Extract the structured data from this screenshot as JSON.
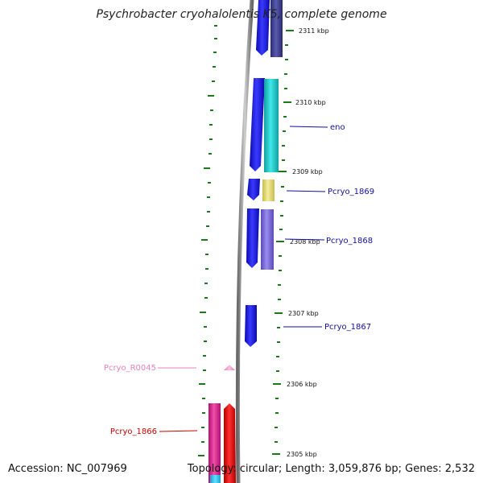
{
  "title": "Psychrobacter cryohalolentis K5, complete genome",
  "footer": {
    "accession": "Accession: NC_007969",
    "summary": "Topology: circular; Length: 3,059,876 bp; Genes: 2,532"
  },
  "ruler": {
    "labels": [
      "2311 kbp",
      "2310 kbp",
      "2309 kbp",
      "2308 kbp",
      "2307 kbp",
      "2306 kbp",
      "2305 kbp"
    ]
  },
  "genes": {
    "eno": "eno",
    "pcryo_1869": "Pcryo_1869",
    "pcryo_1868": "Pcryo_1868",
    "pcryo_1867": "Pcryo_1867",
    "pcryo_r0045": "Pcryo_R0045",
    "pcryo_1866": "Pcryo_1866"
  },
  "colors": {
    "cds": "#1a1ae6",
    "cds_dark": "#3a3a8c",
    "cog_cyan": "#1fc8c8",
    "cog_yellow": "#e8dc7c",
    "cog_lavender": "#7a6ad6",
    "rrna": "#f0a0d0",
    "magenta": "#e0208a",
    "red": "#ee0000",
    "tick_green": "#1a7a1a",
    "label_blue": "#1010a0",
    "label_pink": "#e880c0",
    "label_red": "#cc0000",
    "backbone": "#8c8c8c"
  }
}
